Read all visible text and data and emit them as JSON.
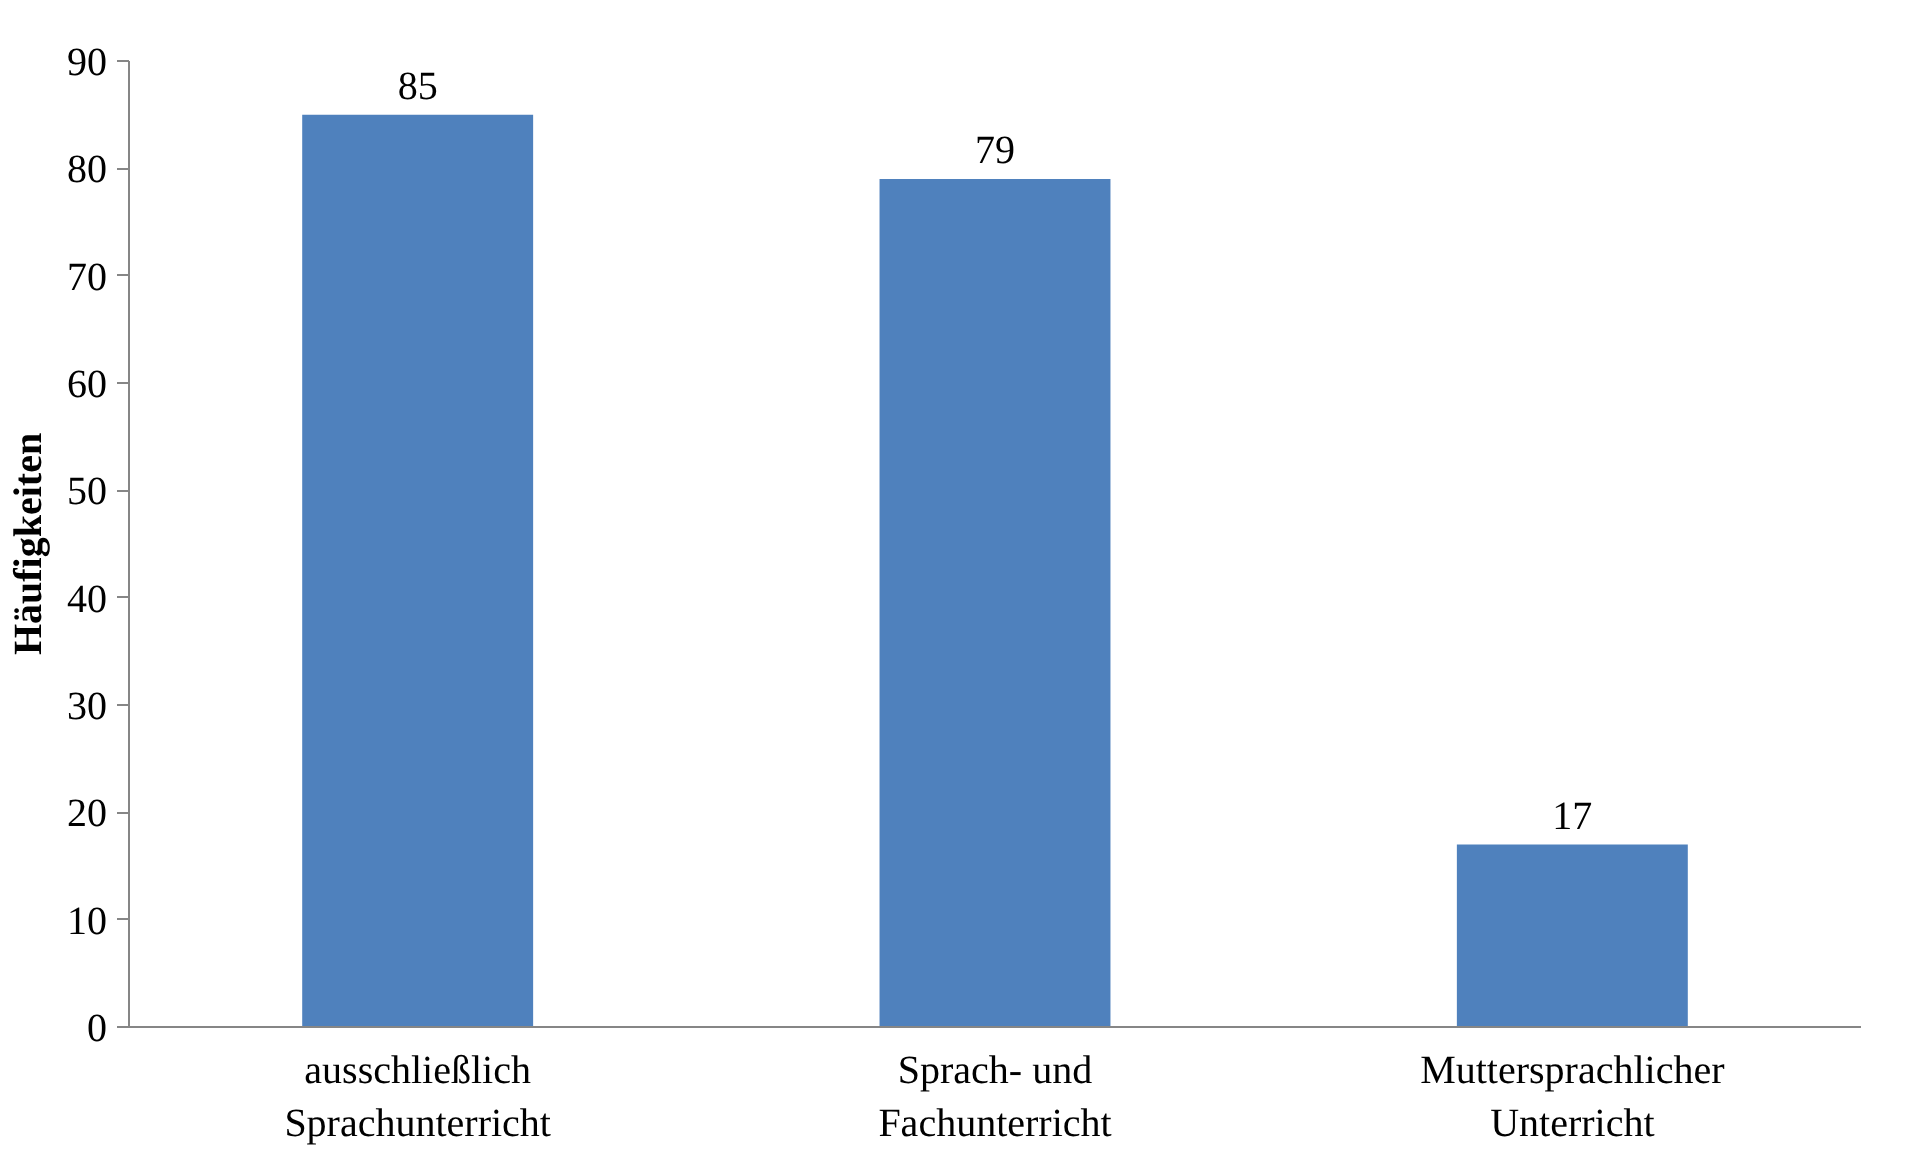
{
  "chart_data": {
    "type": "bar",
    "ylabel": "Häufigkeiten",
    "categories": [
      "ausschließlich\nSprachunterricht",
      "Sprach- und\nFachunterricht",
      "Muttersprachlicher\nUnterricht"
    ],
    "values": [
      85,
      79,
      17
    ],
    "color": "#4f81bd",
    "ylim": [
      0,
      90
    ],
    "yticks": [
      0,
      10,
      20,
      30,
      40,
      50,
      60,
      70,
      80,
      90
    ],
    "grid": false,
    "data_labels": true
  }
}
